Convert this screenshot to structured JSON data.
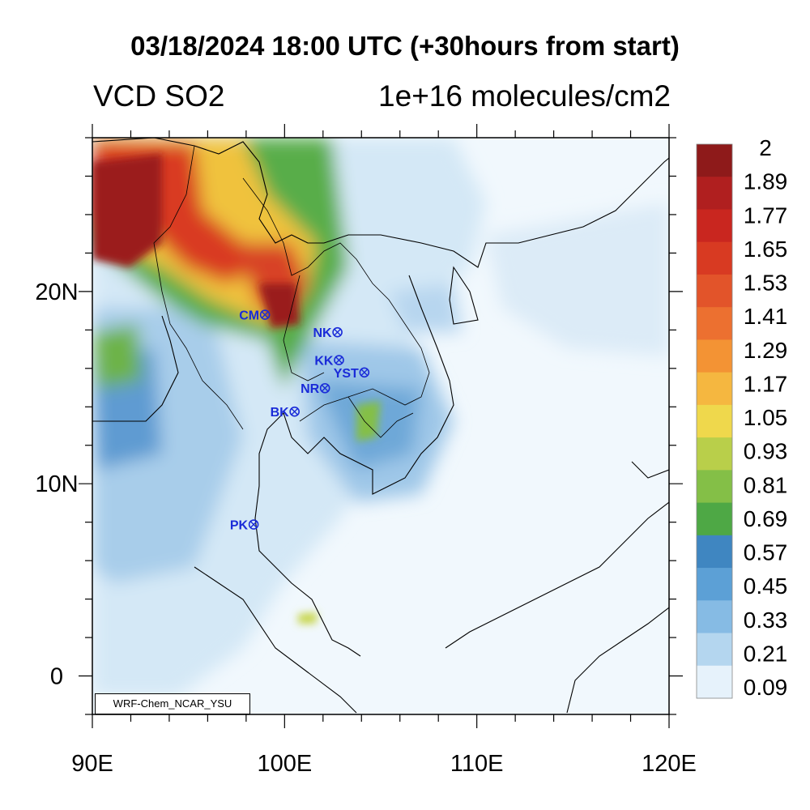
{
  "header": {
    "title": "03/18/2024 18:00 UTC (+30hours from start)",
    "left_title": "VCD SO2",
    "right_title": "1e+16 molecules/cm2"
  },
  "credit": "WRF-Chem_NCAR_YSU",
  "map": {
    "lon_range": [
      90,
      120
    ],
    "lat_range": [
      -2,
      28
    ],
    "lon_ticks": [
      {
        "value": 90,
        "label": "90E"
      },
      {
        "value": 100,
        "label": "100E"
      },
      {
        "value": 110,
        "label": "110E"
      },
      {
        "value": 120,
        "label": "120E"
      }
    ],
    "lat_ticks": [
      {
        "value": 0,
        "label": "0"
      },
      {
        "value": 10,
        "label": "10N"
      },
      {
        "value": 20,
        "label": "20N"
      }
    ],
    "stations": [
      {
        "name": "CM",
        "lon": 98.98,
        "lat": 18.79
      },
      {
        "name": "NK",
        "lon": 102.75,
        "lat": 17.88
      },
      {
        "name": "KK",
        "lon": 102.83,
        "lat": 16.43
      },
      {
        "name": "YST",
        "lon": 104.15,
        "lat": 15.79
      },
      {
        "name": "NR",
        "lon": 102.1,
        "lat": 14.97
      },
      {
        "name": "BK",
        "lon": 100.52,
        "lat": 13.75
      },
      {
        "name": "PK",
        "lon": 98.39,
        "lat": 7.88
      }
    ]
  },
  "colorbar": {
    "labels": [
      "2",
      "1.89",
      "1.77",
      "1.65",
      "1.53",
      "1.41",
      "1.29",
      "1.17",
      "1.05",
      "0.93",
      "0.81",
      "0.69",
      "0.57",
      "0.45",
      "0.33",
      "0.21",
      "0.09"
    ],
    "colors": [
      "#8e1a1a",
      "#b01f1f",
      "#c9261f",
      "#d83a22",
      "#e2542a",
      "#ec7030",
      "#f39334",
      "#f5b740",
      "#efd84c",
      "#b9cf4a",
      "#84bf47",
      "#4ea845",
      "#3f86c1",
      "#5ca0d6",
      "#86bbe4",
      "#b4d6ef",
      "#e6f2fb"
    ]
  }
}
